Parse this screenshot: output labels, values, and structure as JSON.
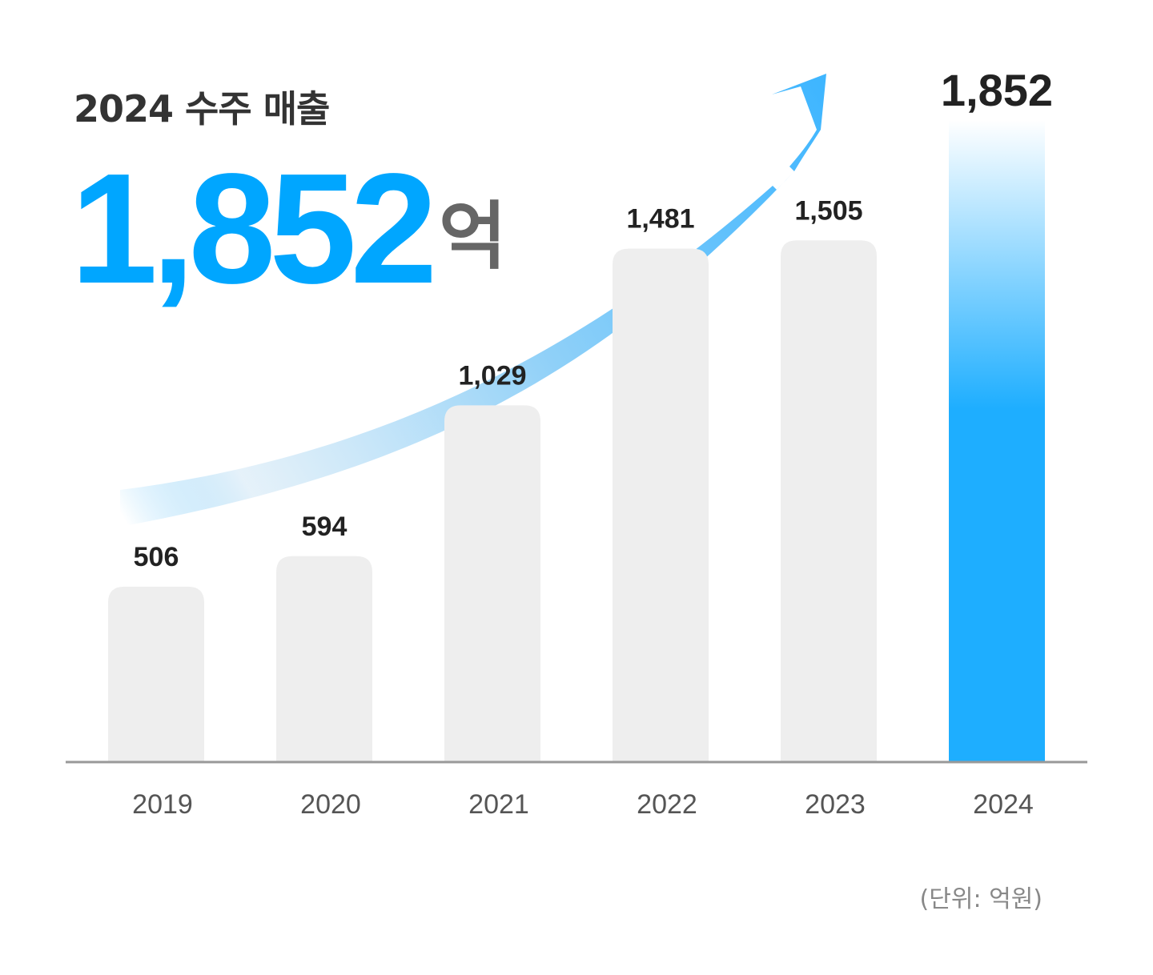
{
  "headline": {
    "label": "2024 수주 매출",
    "value": "1,852",
    "unit": "억"
  },
  "unit_note": "(단위: 억원)",
  "colors": {
    "accent": "#00a6ff",
    "bar": "#eeeeee",
    "highlight_bar": "#1eaeff",
    "axis": "#999999"
  },
  "chart_data": {
    "type": "bar",
    "categories": [
      "2019",
      "2020",
      "2021",
      "2022",
      "2023",
      "2024"
    ],
    "values": [
      506,
      594,
      1029,
      1481,
      1505,
      1852
    ],
    "value_labels": [
      "506",
      "594",
      "1,029",
      "1,481",
      "1,505",
      "1,852"
    ],
    "highlight_index": 5,
    "title": "",
    "xlabel": "",
    "ylabel": "",
    "ylim": [
      0,
      1852
    ],
    "grid": false,
    "trend_arrow": true
  }
}
